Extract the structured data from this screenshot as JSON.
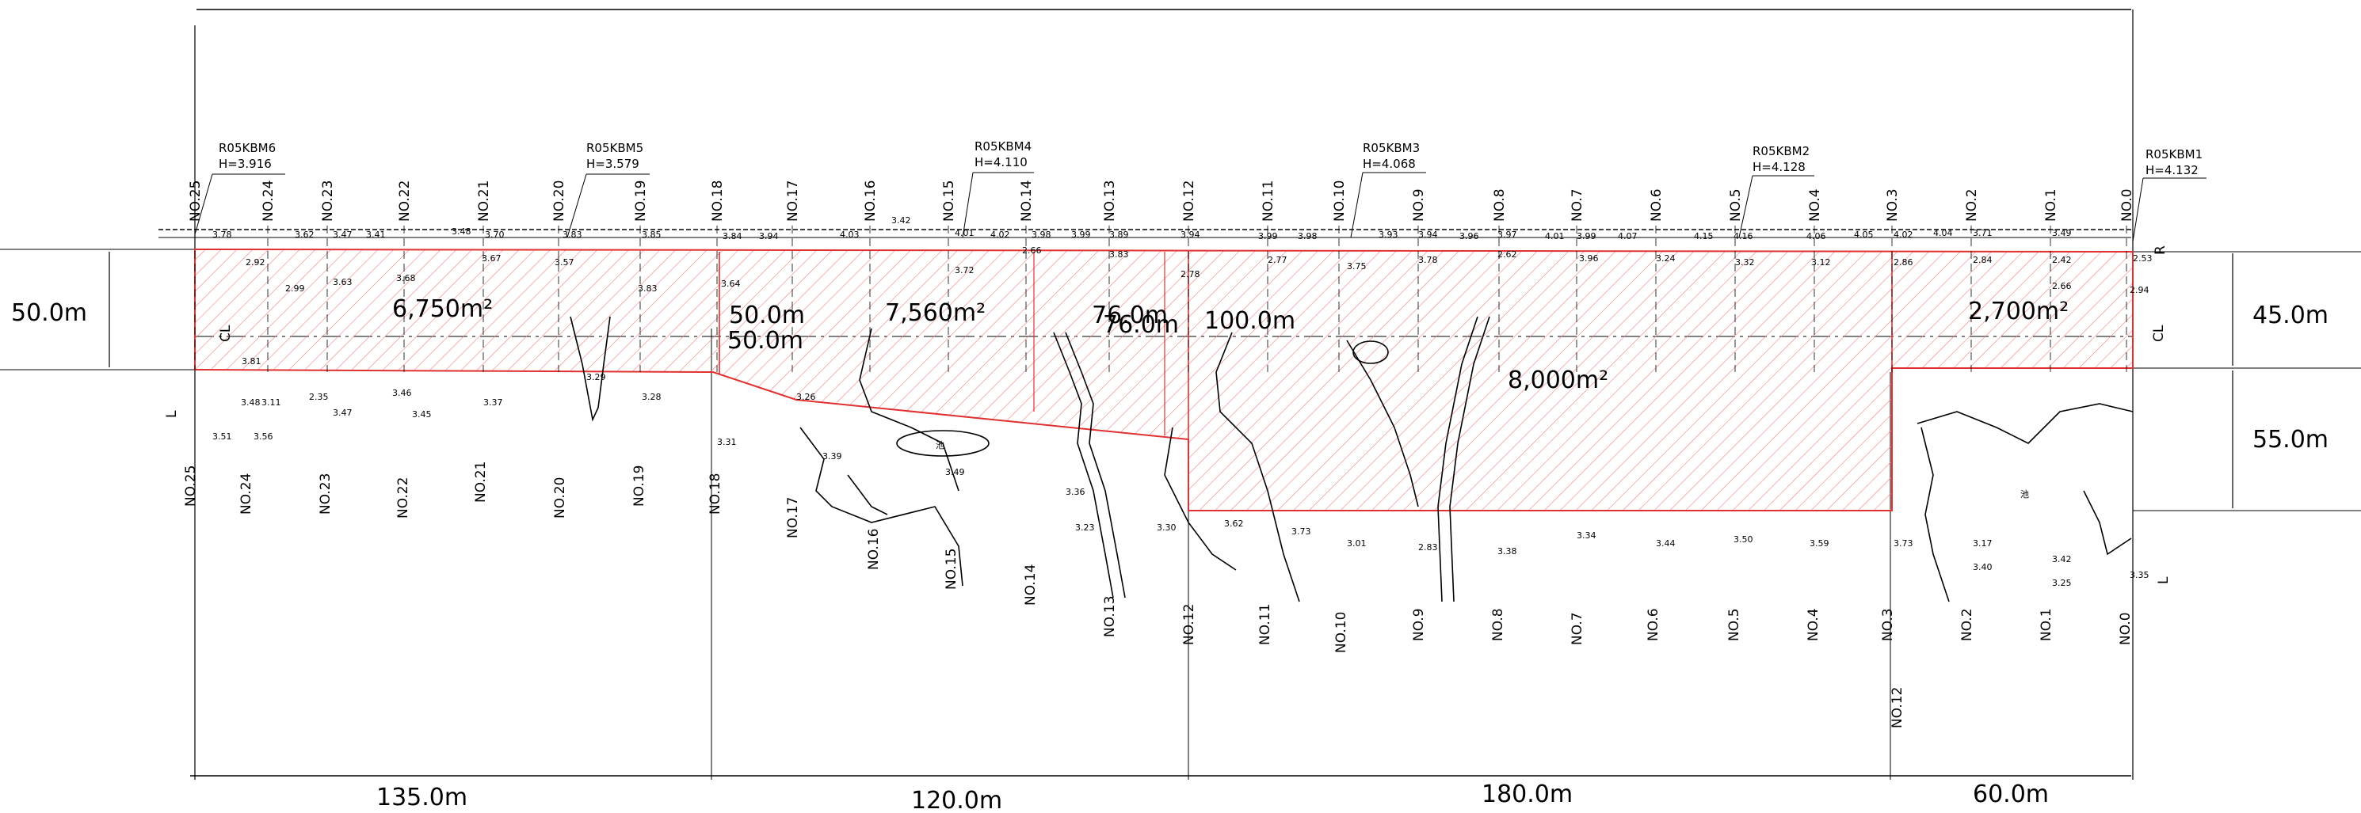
{
  "benchmarks": [
    {
      "name": "R05KBM6",
      "elev": "H=3.916"
    },
    {
      "name": "R05KBM5",
      "elev": "H=3.579"
    },
    {
      "name": "R05KBM4",
      "elev": "H=4.110"
    },
    {
      "name": "R05KBM3",
      "elev": "H=4.068"
    },
    {
      "name": "R05KBM2",
      "elev": "H=4.128"
    },
    {
      "name": "R05KBM1",
      "elev": "H=4.132"
    }
  ],
  "stations_top": [
    "NO.25",
    "NO.24",
    "NO.23",
    "NO.22",
    "NO.21",
    "NO.20",
    "NO.19",
    "NO.18",
    "NO.17",
    "NO.16",
    "NO.15",
    "NO.14",
    "NO.13",
    "NO.12",
    "NO.11",
    "NO.10",
    "NO.9",
    "NO.8",
    "NO.7",
    "NO.6",
    "NO.5",
    "NO.4",
    "NO.3",
    "NO.2",
    "NO.1",
    "NO.0"
  ],
  "stations_bottom": [
    "NO.25",
    "NO.24",
    "NO.23",
    "NO.22",
    "NO.21",
    "NO.20",
    "NO.19",
    "NO.18",
    "NO.17",
    "NO.16",
    "NO.15",
    "NO.14",
    "NO.13",
    "NO.12",
    "NO.11",
    "NO.10",
    "NO.9",
    "NO.8",
    "NO.7",
    "NO.6",
    "NO.5",
    "NO.4",
    "NO.3",
    "NO.2",
    "NO.1",
    "NO.0"
  ],
  "station_extra": "NO.12",
  "widths": {
    "left": "50.0m",
    "right_top": "45.0m",
    "right_bottom": "55.0m"
  },
  "zone_labels": {
    "a": "6,750m²",
    "b1": "50.0m",
    "b2": "50.0m",
    "c": "7,560m²",
    "d1": "76.0m",
    "d2": "76.0m",
    "d3": "100.0m",
    "e": "8,000m²",
    "f": "2,700m²"
  },
  "lengths": [
    "135.0m",
    "120.0m",
    "180.0m",
    "60.0m"
  ],
  "markers": {
    "cl": "CL",
    "l": "L",
    "r": "R",
    "pond": "池"
  },
  "spot_elevations": [
    {
      "v": "3.78"
    },
    {
      "v": "3.62"
    },
    {
      "v": "3.47"
    },
    {
      "v": "3.41"
    },
    {
      "v": "3.48"
    },
    {
      "v": "3.70"
    },
    {
      "v": "3.83"
    },
    {
      "v": "3.85"
    },
    {
      "v": "3.84"
    },
    {
      "v": "3.94"
    },
    {
      "v": "4.03"
    },
    {
      "v": "4.01"
    },
    {
      "v": "4.02"
    },
    {
      "v": "3.98"
    },
    {
      "v": "3.99"
    },
    {
      "v": "3.89"
    },
    {
      "v": "3.94"
    },
    {
      "v": "3.99"
    },
    {
      "v": "3.98"
    },
    {
      "v": "3.93"
    },
    {
      "v": "3.94"
    },
    {
      "v": "3.96"
    },
    {
      "v": "3.97"
    },
    {
      "v": "4.01"
    },
    {
      "v": "3.99"
    },
    {
      "v": "4.07"
    },
    {
      "v": "4.15"
    },
    {
      "v": "4.16"
    },
    {
      "v": "4.06"
    },
    {
      "v": "4.05"
    },
    {
      "v": "4.02"
    },
    {
      "v": "4.04"
    },
    {
      "v": "3.71"
    },
    {
      "v": "3.49"
    },
    {
      "v": "3.42"
    },
    {
      "v": "2.92"
    },
    {
      "v": "2.99"
    },
    {
      "v": "3.63"
    },
    {
      "v": "3.68"
    },
    {
      "v": "3.67"
    },
    {
      "v": "3.57"
    },
    {
      "v": "3.83"
    },
    {
      "v": "3.64"
    },
    {
      "v": "3.72"
    },
    {
      "v": "2.66"
    },
    {
      "v": "3.83"
    },
    {
      "v": "2.78"
    },
    {
      "v": "2.77"
    },
    {
      "v": "3.75"
    },
    {
      "v": "3.78"
    },
    {
      "v": "2.62"
    },
    {
      "v": "3.96"
    },
    {
      "v": "3.24"
    },
    {
      "v": "3.32"
    },
    {
      "v": "3.12"
    },
    {
      "v": "2.86"
    },
    {
      "v": "2.84"
    },
    {
      "v": "2.42"
    },
    {
      "v": "2.53"
    },
    {
      "v": "2.66"
    },
    {
      "v": "2.94"
    },
    {
      "v": "3.81"
    },
    {
      "v": "3.48"
    },
    {
      "v": "3.11"
    },
    {
      "v": "2.35"
    },
    {
      "v": "3.47"
    },
    {
      "v": "3.46"
    },
    {
      "v": "3.45"
    },
    {
      "v": "3.37"
    },
    {
      "v": "3.29"
    },
    {
      "v": "3.28"
    },
    {
      "v": "3.31"
    },
    {
      "v": "3.26"
    },
    {
      "v": "3.39"
    },
    {
      "v": "3.49"
    },
    {
      "v": "3.36"
    },
    {
      "v": "3.23"
    },
    {
      "v": "3.30"
    },
    {
      "v": "3.62"
    },
    {
      "v": "3.73"
    },
    {
      "v": "3.01"
    },
    {
      "v": "2.83"
    },
    {
      "v": "3.38"
    },
    {
      "v": "3.34"
    },
    {
      "v": "3.44"
    },
    {
      "v": "3.50"
    },
    {
      "v": "3.59"
    },
    {
      "v": "3.73"
    },
    {
      "v": "3.17"
    },
    {
      "v": "3.42"
    },
    {
      "v": "3.35"
    },
    {
      "v": "3.40"
    },
    {
      "v": "3.25"
    },
    {
      "v": "3.51"
    },
    {
      "v": "3.56"
    }
  ]
}
